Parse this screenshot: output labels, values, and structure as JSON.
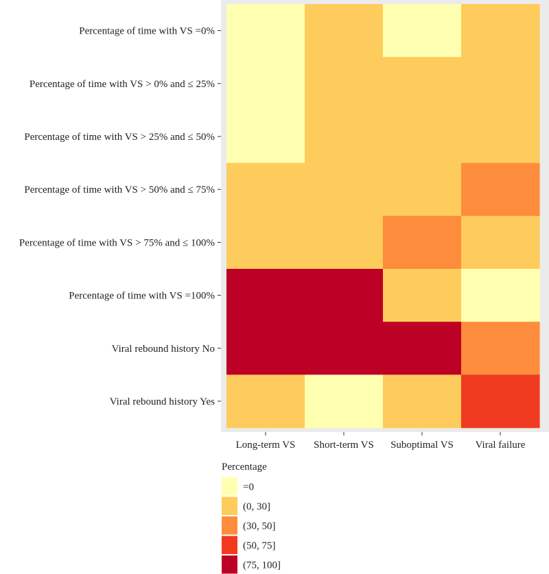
{
  "chart_data": {
    "type": "heatmap",
    "title": "",
    "xlabel": "",
    "ylabel": "",
    "x": [
      "Long-term VS",
      "Short-term VS",
      "Suboptimal VS",
      "Viral failure"
    ],
    "y": [
      "Percentage of time with VS =0%",
      "Percentage of time with VS > 0% and ≤ 25%",
      "Percentage of time with VS > 25% and ≤ 50%",
      "Percentage of time with VS > 50% and ≤ 75%",
      "Percentage of time with VS > 75% and ≤ 100%",
      "Percentage of time with VS =100%",
      "Viral rebound history No",
      "Viral rebound history Yes"
    ],
    "cells": [
      [
        "=0",
        "(0, 30]",
        "=0",
        "(0, 30]"
      ],
      [
        "=0",
        "(0, 30]",
        "(0, 30]",
        "(0, 30]"
      ],
      [
        "=0",
        "(0, 30]",
        "(0, 30]",
        "(0, 30]"
      ],
      [
        "(0, 30]",
        "(0, 30]",
        "(0, 30]",
        "(30, 50]"
      ],
      [
        "(0, 30]",
        "(0, 30]",
        "(30, 50]",
        "(0, 30]"
      ],
      [
        "(75, 100]",
        "(75, 100]",
        "(0, 30]",
        "=0"
      ],
      [
        "(75, 100]",
        "(75, 100]",
        "(75, 100]",
        "(30, 50]"
      ],
      [
        "(0, 30]",
        "=0",
        "(0, 30]",
        "(50, 75]"
      ]
    ],
    "legend": {
      "title": "Percentage",
      "position": "bottom-left",
      "bins": [
        {
          "label": "=0",
          "color": "#FFFFB2"
        },
        {
          "label": "(0, 30]",
          "color": "#FECC5C"
        },
        {
          "label": "(30, 50]",
          "color": "#FD8D3C"
        },
        {
          "label": "(50, 75]",
          "color": "#F03B20"
        },
        {
          "label": "(75, 100]",
          "color": "#BD0026"
        }
      ]
    },
    "panel_background": "#EBEBEB",
    "tick_color": "#333333"
  }
}
